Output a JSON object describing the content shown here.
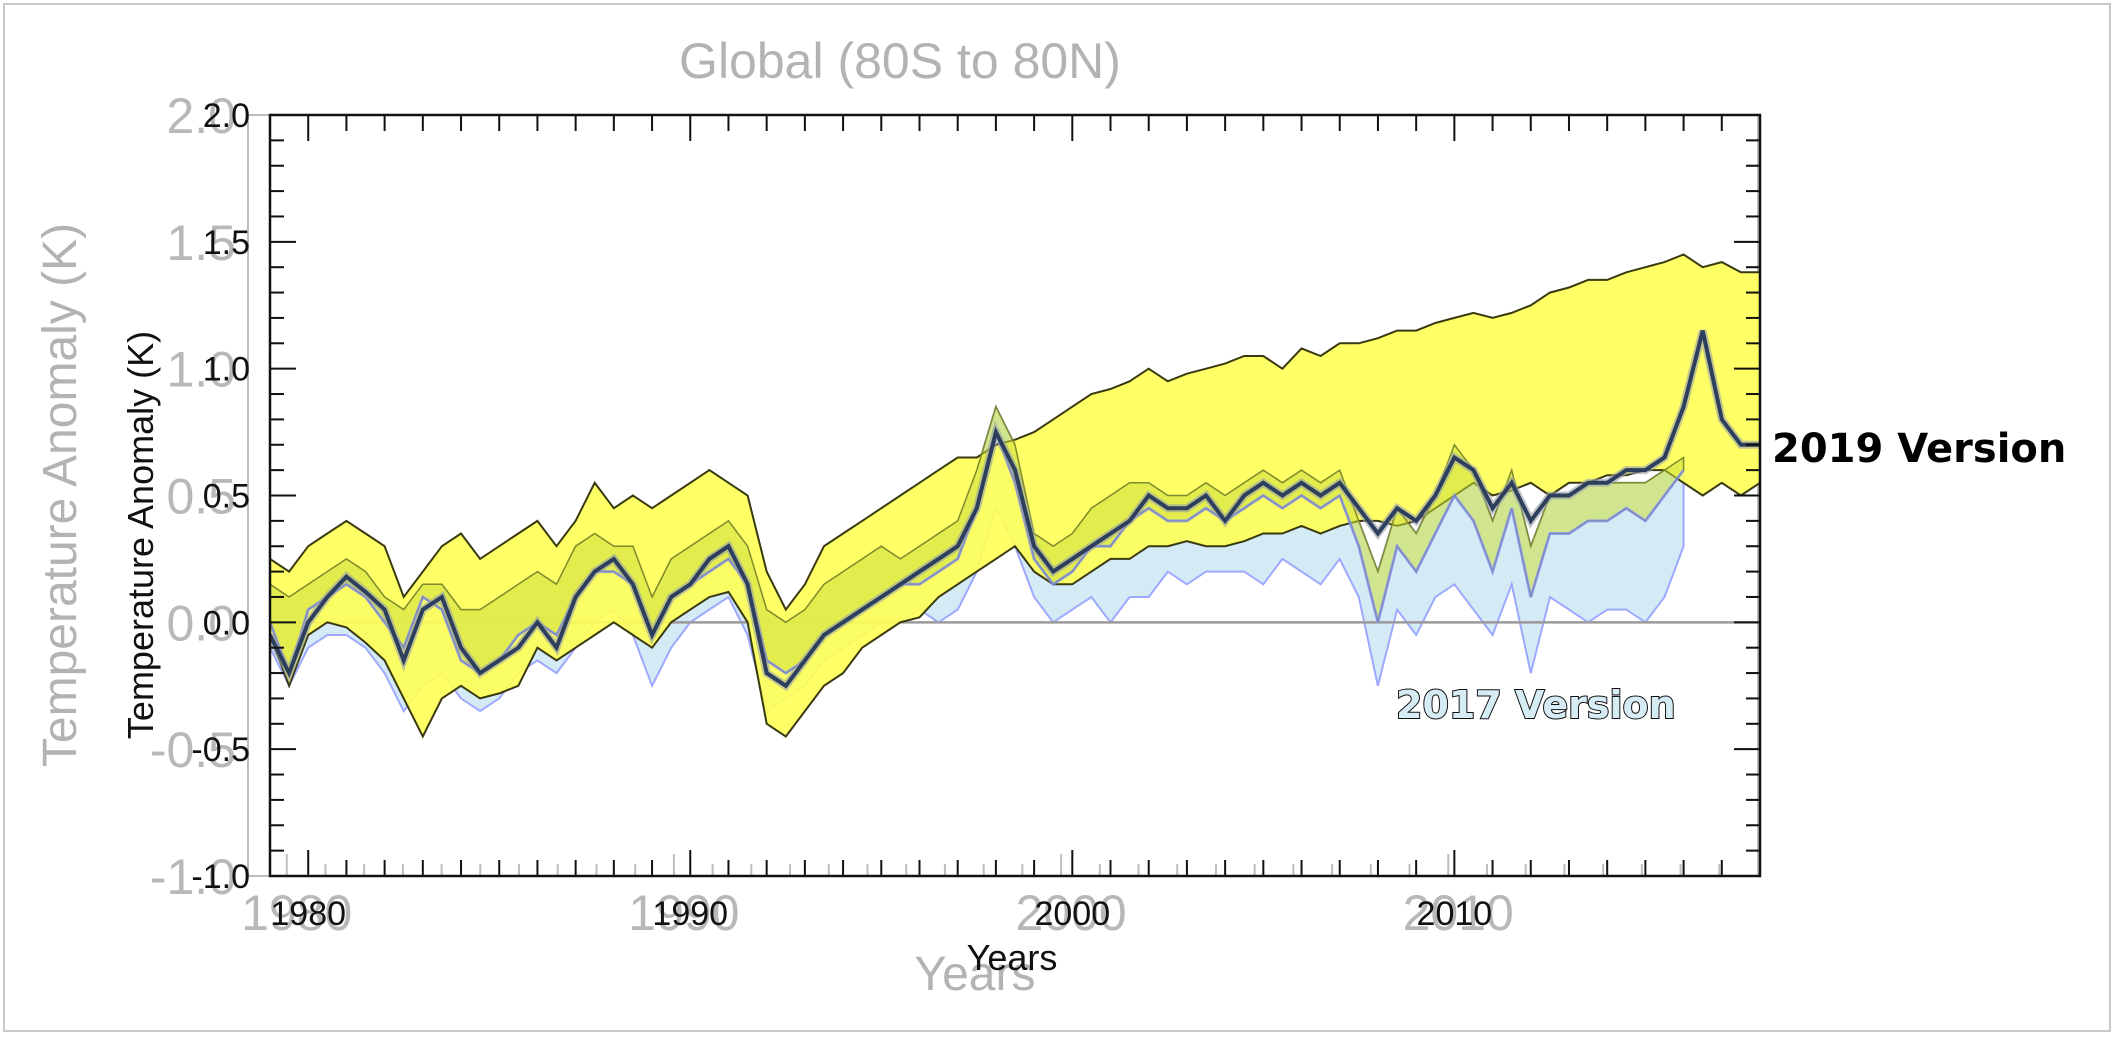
{
  "chart_data": {
    "type": "area",
    "title": "Global (80S to 80N)",
    "xlabel": "Years",
    "ylabel": "Temperature Anomaly (K)",
    "xlim": [
      1979,
      2018
    ],
    "ylim": [
      -1.0,
      2.0
    ],
    "x_ticks": [
      "1980",
      "1990",
      "2000",
      "2010"
    ],
    "y_ticks": [
      "2.0",
      "1.5",
      "1.0",
      "0.5",
      "0.0",
      "-0.5",
      "-1.0"
    ],
    "grid": false,
    "zero_line": true,
    "annotations": [
      "2019 Version",
      "2017 Version"
    ],
    "colors": {
      "band_2019": "#ffff55",
      "band_2017": "#d4ebf6",
      "band_2017_edge": "#9fa8ff",
      "band_2019_edge": "#3a3a10",
      "overlap": "#cde03a",
      "central_line": "#2e3f5e",
      "ghost_axes": "#bdbdbd"
    },
    "x": [
      1979.0,
      1979.5,
      1980.0,
      1980.5,
      1981.0,
      1981.5,
      1982.0,
      1982.5,
      1983.0,
      1983.5,
      1984.0,
      1984.5,
      1985.0,
      1985.5,
      1986.0,
      1986.5,
      1987.0,
      1987.5,
      1988.0,
      1988.5,
      1989.0,
      1989.5,
      1990.0,
      1990.5,
      1991.0,
      1991.5,
      1992.0,
      1992.5,
      1993.0,
      1993.5,
      1994.0,
      1994.5,
      1995.0,
      1995.5,
      1996.0,
      1996.5,
      1997.0,
      1997.5,
      1998.0,
      1998.5,
      1999.0,
      1999.5,
      2000.0,
      2000.5,
      2001.0,
      2001.5,
      2002.0,
      2002.5,
      2003.0,
      2003.5,
      2004.0,
      2004.5,
      2005.0,
      2005.5,
      2006.0,
      2006.5,
      2007.0,
      2007.5,
      2008.0,
      2008.5,
      2009.0,
      2009.5,
      2010.0,
      2010.5,
      2011.0,
      2011.5,
      2012.0,
      2012.5,
      2013.0,
      2013.5,
      2014.0,
      2014.5,
      2015.0,
      2015.5,
      2016.0,
      2016.5,
      2017.0,
      2017.5,
      2018.0
    ],
    "series": [
      {
        "name": "2019 Version",
        "lower": [
          -0.05,
          -0.25,
          -0.05,
          0.0,
          -0.02,
          -0.08,
          -0.15,
          -0.3,
          -0.45,
          -0.3,
          -0.25,
          -0.3,
          -0.28,
          -0.25,
          -0.1,
          -0.15,
          -0.1,
          -0.05,
          0.0,
          -0.05,
          -0.1,
          0.0,
          0.05,
          0.1,
          0.12,
          0.0,
          -0.4,
          -0.45,
          -0.35,
          -0.25,
          -0.2,
          -0.1,
          -0.05,
          0.0,
          0.02,
          0.1,
          0.15,
          0.2,
          0.25,
          0.3,
          0.2,
          0.15,
          0.15,
          0.2,
          0.25,
          0.25,
          0.3,
          0.3,
          0.32,
          0.3,
          0.3,
          0.32,
          0.35,
          0.35,
          0.38,
          0.35,
          0.38,
          0.4,
          0.4,
          0.38,
          0.4,
          0.45,
          0.5,
          0.55,
          0.5,
          0.52,
          0.55,
          0.5,
          0.55,
          0.55,
          0.58,
          0.58,
          0.6,
          0.6,
          0.55,
          0.5,
          0.55,
          0.5,
          0.55
        ],
        "upper": [
          0.25,
          0.2,
          0.3,
          0.35,
          0.4,
          0.35,
          0.3,
          0.1,
          0.2,
          0.3,
          0.35,
          0.25,
          0.3,
          0.35,
          0.4,
          0.3,
          0.4,
          0.55,
          0.45,
          0.5,
          0.45,
          0.5,
          0.55,
          0.6,
          0.55,
          0.5,
          0.2,
          0.05,
          0.15,
          0.3,
          0.35,
          0.4,
          0.45,
          0.5,
          0.55,
          0.6,
          0.65,
          0.65,
          0.7,
          0.72,
          0.75,
          0.8,
          0.85,
          0.9,
          0.92,
          0.95,
          1.0,
          0.95,
          0.98,
          1.0,
          1.02,
          1.05,
          1.05,
          1.0,
          1.08,
          1.05,
          1.1,
          1.1,
          1.12,
          1.15,
          1.15,
          1.18,
          1.2,
          1.22,
          1.2,
          1.22,
          1.25,
          1.3,
          1.32,
          1.35,
          1.35,
          1.38,
          1.4,
          1.42,
          1.45,
          1.4,
          1.42,
          1.38,
          1.38
        ]
      },
      {
        "name": "2017 Version",
        "lower": [
          -0.1,
          -0.25,
          -0.1,
          -0.05,
          -0.05,
          -0.1,
          -0.2,
          -0.35,
          -0.25,
          -0.2,
          -0.3,
          -0.35,
          -0.3,
          -0.2,
          -0.15,
          -0.2,
          -0.1,
          0.0,
          0.05,
          -0.05,
          -0.25,
          -0.1,
          0.0,
          0.05,
          0.1,
          -0.05,
          -0.35,
          -0.3,
          -0.25,
          -0.15,
          -0.1,
          -0.05,
          0.0,
          0.0,
          0.05,
          0.0,
          0.05,
          0.2,
          0.45,
          0.3,
          0.1,
          0.0,
          0.05,
          0.1,
          0.0,
          0.1,
          0.1,
          0.2,
          0.15,
          0.2,
          0.2,
          0.2,
          0.15,
          0.25,
          0.2,
          0.15,
          0.25,
          0.1,
          -0.25,
          0.05,
          -0.05,
          0.1,
          0.15,
          0.05,
          -0.05,
          0.15,
          -0.2,
          0.1,
          0.05,
          0.0,
          0.05,
          0.05,
          0.0,
          0.1,
          0.3,
          null,
          null,
          null,
          null
        ],
        "upper": [
          0.15,
          0.1,
          0.15,
          0.2,
          0.25,
          0.2,
          0.1,
          0.05,
          0.15,
          0.15,
          0.05,
          0.05,
          0.1,
          0.15,
          0.2,
          0.15,
          0.3,
          0.35,
          0.3,
          0.3,
          0.1,
          0.25,
          0.3,
          0.35,
          0.4,
          0.3,
          0.05,
          0.0,
          0.05,
          0.15,
          0.2,
          0.25,
          0.3,
          0.25,
          0.3,
          0.35,
          0.4,
          0.6,
          0.85,
          0.7,
          0.35,
          0.3,
          0.35,
          0.45,
          0.5,
          0.55,
          0.55,
          0.5,
          0.5,
          0.55,
          0.5,
          0.55,
          0.6,
          0.55,
          0.6,
          0.55,
          0.6,
          0.4,
          0.2,
          0.45,
          0.35,
          0.5,
          0.7,
          0.6,
          0.4,
          0.6,
          0.3,
          0.5,
          0.5,
          0.55,
          0.55,
          0.55,
          0.55,
          0.6,
          0.65,
          null,
          null,
          null,
          null
        ],
        "central": [
          0.0,
          -0.2,
          0.05,
          0.1,
          0.15,
          0.1,
          0.0,
          -0.1,
          0.1,
          0.05,
          -0.15,
          -0.2,
          -0.15,
          -0.05,
          0.0,
          -0.05,
          0.1,
          0.2,
          0.2,
          0.15,
          -0.05,
          0.1,
          0.15,
          0.2,
          0.25,
          0.15,
          -0.15,
          -0.2,
          -0.15,
          -0.05,
          0.0,
          0.05,
          0.1,
          0.15,
          0.15,
          0.2,
          0.25,
          0.45,
          0.75,
          0.55,
          0.25,
          0.15,
          0.2,
          0.3,
          0.3,
          0.4,
          0.45,
          0.4,
          0.4,
          0.45,
          0.4,
          0.45,
          0.5,
          0.45,
          0.5,
          0.45,
          0.5,
          0.3,
          0.0,
          0.3,
          0.2,
          0.35,
          0.5,
          0.4,
          0.2,
          0.45,
          0.1,
          0.35,
          0.35,
          0.4,
          0.4,
          0.45,
          0.4,
          0.5,
          0.6,
          null,
          null,
          null,
          null
        ]
      },
      {
        "name": "",
        "central": [
          -0.05,
          -0.2,
          0.0,
          0.1,
          0.18,
          0.12,
          0.05,
          -0.15,
          0.05,
          0.1,
          -0.1,
          -0.2,
          -0.15,
          -0.1,
          0.0,
          -0.1,
          0.1,
          0.2,
          0.25,
          0.15,
          -0.05,
          0.1,
          0.15,
          0.25,
          0.3,
          0.15,
          -0.2,
          -0.25,
          -0.15,
          -0.05,
          0.0,
          0.05,
          0.1,
          0.15,
          0.2,
          0.25,
          0.3,
          0.45,
          0.75,
          0.6,
          0.3,
          0.2,
          0.25,
          0.3,
          0.35,
          0.4,
          0.5,
          0.45,
          0.45,
          0.5,
          0.4,
          0.5,
          0.55,
          0.5,
          0.55,
          0.5,
          0.55,
          0.45,
          0.35,
          0.45,
          0.4,
          0.5,
          0.65,
          0.6,
          0.45,
          0.55,
          0.4,
          0.5,
          0.5,
          0.55,
          0.55,
          0.6,
          0.6,
          0.65,
          0.85,
          1.15,
          0.8,
          0.7,
          0.7
        ]
      }
    ],
    "ghost_overlay": {
      "title": "Global (80S to 80N)",
      "xlabel": "Years",
      "ylabel": "Temperature Anomaly (K)",
      "x_ticks": [
        "1980",
        "1990",
        "2000",
        "2010"
      ],
      "y_ticks": [
        "2.0",
        "1.5",
        "1.0",
        "0.5",
        "0.0",
        "-0.5",
        "-1.0"
      ]
    }
  }
}
